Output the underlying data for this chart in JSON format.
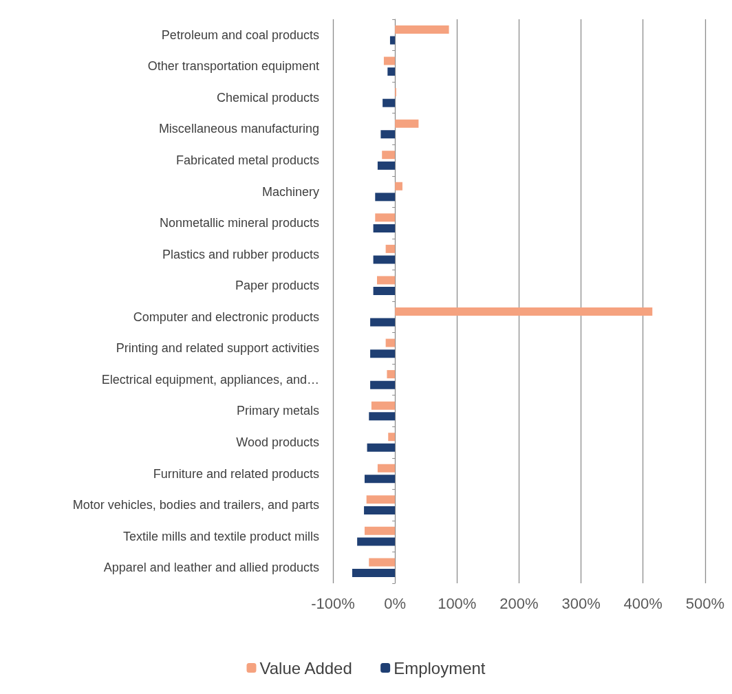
{
  "chart_data": {
    "type": "bar",
    "orientation": "horizontal",
    "categories": [
      "Petroleum and coal products",
      "Other transportation equipment",
      "Chemical products",
      "Miscellaneous manufacturing",
      "Fabricated metal products",
      "Machinery",
      "Nonmetallic mineral products",
      "Plastics and rubber products",
      "Paper products",
      "Computer and electronic products",
      "Printing and related support activities",
      "Electrical equipment, appliances, and…",
      "Primary metals",
      "Wood products",
      "Furniture and related products",
      "Motor vehicles, bodies and trailers, and parts",
      "Textile mills and textile product mills",
      "Apparel and leather and allied products"
    ],
    "series": [
      {
        "name": "Value Added",
        "color": "#f5a27f",
        "values": [
          87,
          -18,
          2,
          38,
          -21,
          12,
          -32,
          -15,
          -29,
          415,
          -15,
          -13,
          -38,
          -11,
          -28,
          -46,
          -49,
          -42
        ]
      },
      {
        "name": "Employment",
        "color": "#1f3f73",
        "values": [
          -8,
          -12,
          -20,
          -23,
          -28,
          -32,
          -35,
          -35,
          -35,
          -40,
          -40,
          -40,
          -42,
          -45,
          -49,
          -50,
          -61,
          -69
        ]
      }
    ],
    "xlim": [
      -100,
      500
    ],
    "xticks": [
      {
        "value": -100,
        "label": "-100%"
      },
      {
        "value": 0,
        "label": "0%"
      },
      {
        "value": 100,
        "label": "100%"
      },
      {
        "value": 200,
        "label": "200%"
      },
      {
        "value": 300,
        "label": "300%"
      },
      {
        "value": 400,
        "label": "400%"
      },
      {
        "value": 500,
        "label": "500%"
      }
    ],
    "grid": "x",
    "legend": "bottom"
  }
}
